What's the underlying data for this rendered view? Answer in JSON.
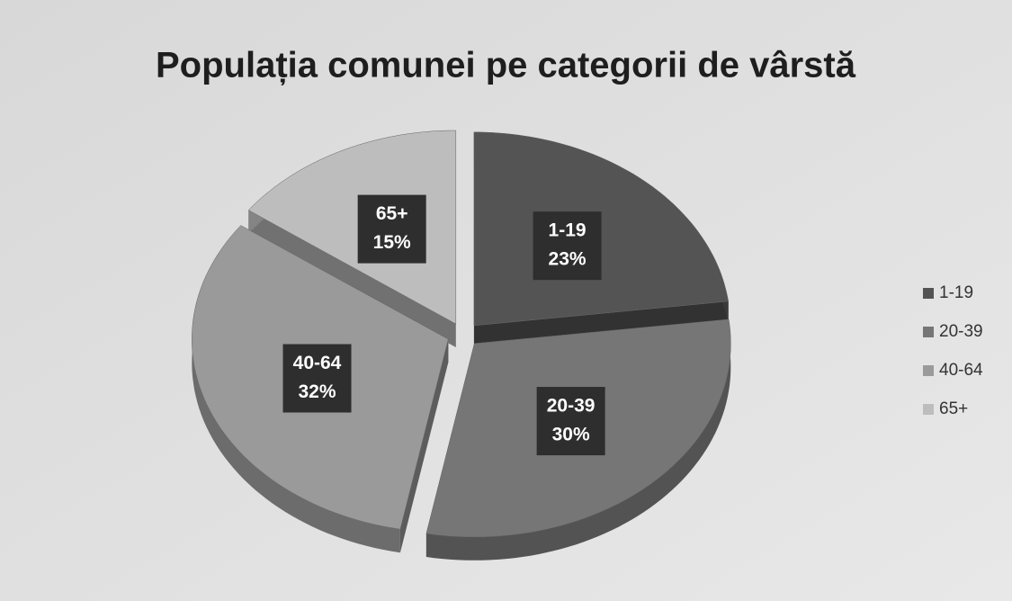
{
  "chart_data": {
    "type": "pie3d",
    "title": "Populația comunei pe categorii de vârstă",
    "categories": [
      "1-19",
      "20-39",
      "40-64",
      "65+"
    ],
    "values": [
      23,
      30,
      32,
      15
    ],
    "value_labels": [
      "23%",
      "30%",
      "32%",
      "15%"
    ],
    "colors": [
      "#545454",
      "#767676",
      "#9a9a9a",
      "#bdbdbd"
    ],
    "legend": "right"
  }
}
